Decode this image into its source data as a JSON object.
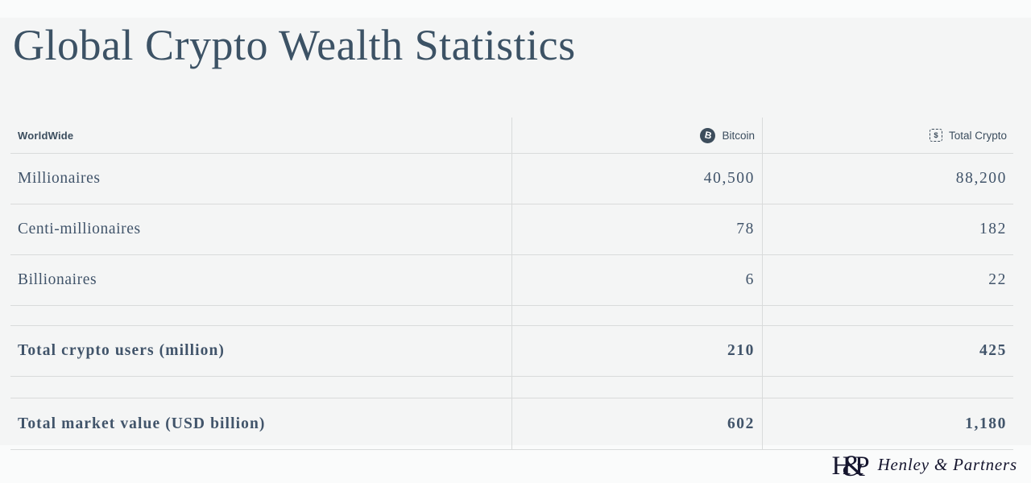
{
  "page": {
    "title": "Global Crypto Wealth Statistics"
  },
  "table": {
    "header": {
      "region_label": "WorldWide",
      "columns": [
        {
          "label": "Bitcoin",
          "icon": "bitcoin-icon",
          "symbol": "B"
        },
        {
          "label": "Total Crypto",
          "icon": "token-chip-icon",
          "symbol": "$"
        }
      ]
    },
    "rows": [
      {
        "label": "Millionaires",
        "bitcoin": "40,500",
        "total_crypto": "88,200"
      },
      {
        "label": "Centi-millionaires",
        "bitcoin": "78",
        "total_crypto": "182"
      },
      {
        "label": "Billionaires",
        "bitcoin": "6",
        "total_crypto": "22"
      },
      {
        "label": "Total crypto users (million)",
        "bitcoin": "210",
        "total_crypto": "425"
      },
      {
        "label": "Total market value (USD billion)",
        "bitcoin": "602",
        "total_crypto": "1,180"
      }
    ]
  },
  "brand": {
    "monogram": [
      "H",
      "&",
      "P"
    ],
    "name": "Henley & Partners"
  },
  "colors": {
    "background": "#f4f5f5",
    "title_text": "#3c5265",
    "body_text": "#41546a",
    "header_text": "#3b4d5e",
    "border": "#d9dbdb",
    "bitcoin_icon_bg": "#3d4d5c",
    "logo_text": "#15152e"
  },
  "chart_data": {
    "type": "table",
    "title": "Global Crypto Wealth Statistics",
    "columns": [
      "WorldWide",
      "Bitcoin",
      "Total Crypto"
    ],
    "rows": [
      [
        "Millionaires",
        40500,
        88200
      ],
      [
        "Centi-millionaires",
        78,
        182
      ],
      [
        "Billionaires",
        6,
        22
      ],
      [
        "Total crypto users (million)",
        210,
        425
      ],
      [
        "Total market value (USD billion)",
        602,
        1180
      ]
    ]
  }
}
